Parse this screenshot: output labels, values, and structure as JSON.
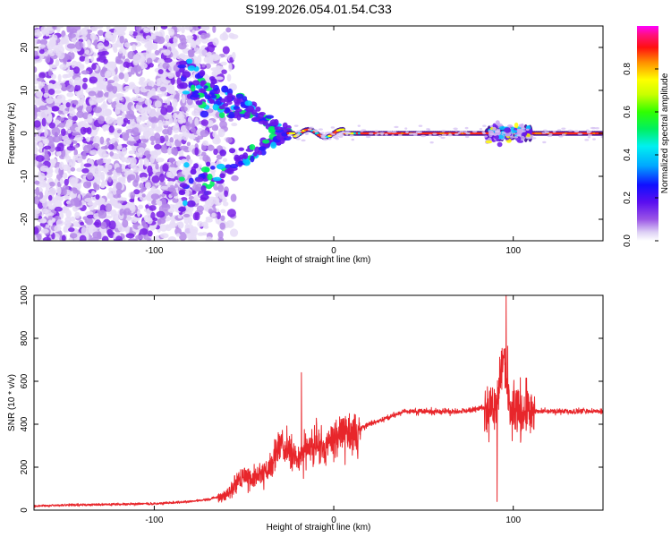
{
  "figure": {
    "title": "S199.2026.054.01.54.C33"
  },
  "chart_data": [
    {
      "type": "heatmap",
      "title": "S199.2026.054.01.54.C33",
      "xlabel": "Height of straight line (km)",
      "ylabel": "Frequency (Hz)",
      "xlim": [
        -167,
        150
      ],
      "ylim": [
        -25,
        25
      ],
      "xticks": [
        -100,
        0,
        100
      ],
      "yticks": [
        -20,
        -10,
        0,
        10,
        20
      ],
      "colorbar": {
        "label": "Normalized spectral amplitude",
        "range": [
          0,
          1
        ],
        "ticks": [
          0.0,
          0.2,
          0.4,
          0.6,
          0.8
        ],
        "colormap": "rainbow (white-violet-blue-cyan-green-yellow-red-magenta)"
      },
      "features": {
        "diffuse_noise_region_x": [
          -167,
          -65
        ],
        "dispersive_arms_x": [
          -85,
          -25
        ],
        "carrier_line_frequency": 0,
        "carrier_start_x": -25,
        "disturbance_x": [
          85,
          110
        ]
      },
      "colors": {
        "background": "#ffffff",
        "noise": "#7a20e8",
        "carrier": "#e8262b"
      }
    },
    {
      "type": "line",
      "xlabel": "Height of straight line (km)",
      "ylabel": "SNR (10 * v/v)",
      "xlim": [
        -167,
        150
      ],
      "ylim": [
        0,
        1000
      ],
      "xticks": [
        -100,
        0,
        100
      ],
      "yticks": [
        0,
        200,
        400,
        600,
        800,
        1000
      ],
      "series": [
        {
          "color": "#e8262b",
          "x": [
            -167,
            -140,
            -100,
            -80,
            -70,
            -60,
            -55,
            -50,
            -45,
            -40,
            -35,
            -30,
            -25,
            -20,
            -15,
            -10,
            -5,
            0,
            10,
            20,
            30,
            40,
            50,
            60,
            70,
            80,
            85,
            88,
            90,
            92,
            95,
            98,
            100,
            105,
            110,
            120,
            130,
            140,
            150
          ],
          "y": [
            20,
            25,
            30,
            40,
            50,
            70,
            120,
            160,
            150,
            170,
            210,
            300,
            280,
            230,
            280,
            310,
            300,
            330,
            360,
            400,
            430,
            460,
            460,
            460,
            460,
            470,
            480,
            500,
            450,
            600,
            700,
            500,
            470,
            470,
            460,
            460,
            460,
            460,
            460
          ]
        }
      ],
      "annotations": {
        "peak_spike": {
          "x": -18,
          "y": 640
        },
        "max_spike": {
          "x": 96,
          "y": 1000
        },
        "deep_trough": {
          "x": 91,
          "y": 40
        }
      }
    }
  ]
}
